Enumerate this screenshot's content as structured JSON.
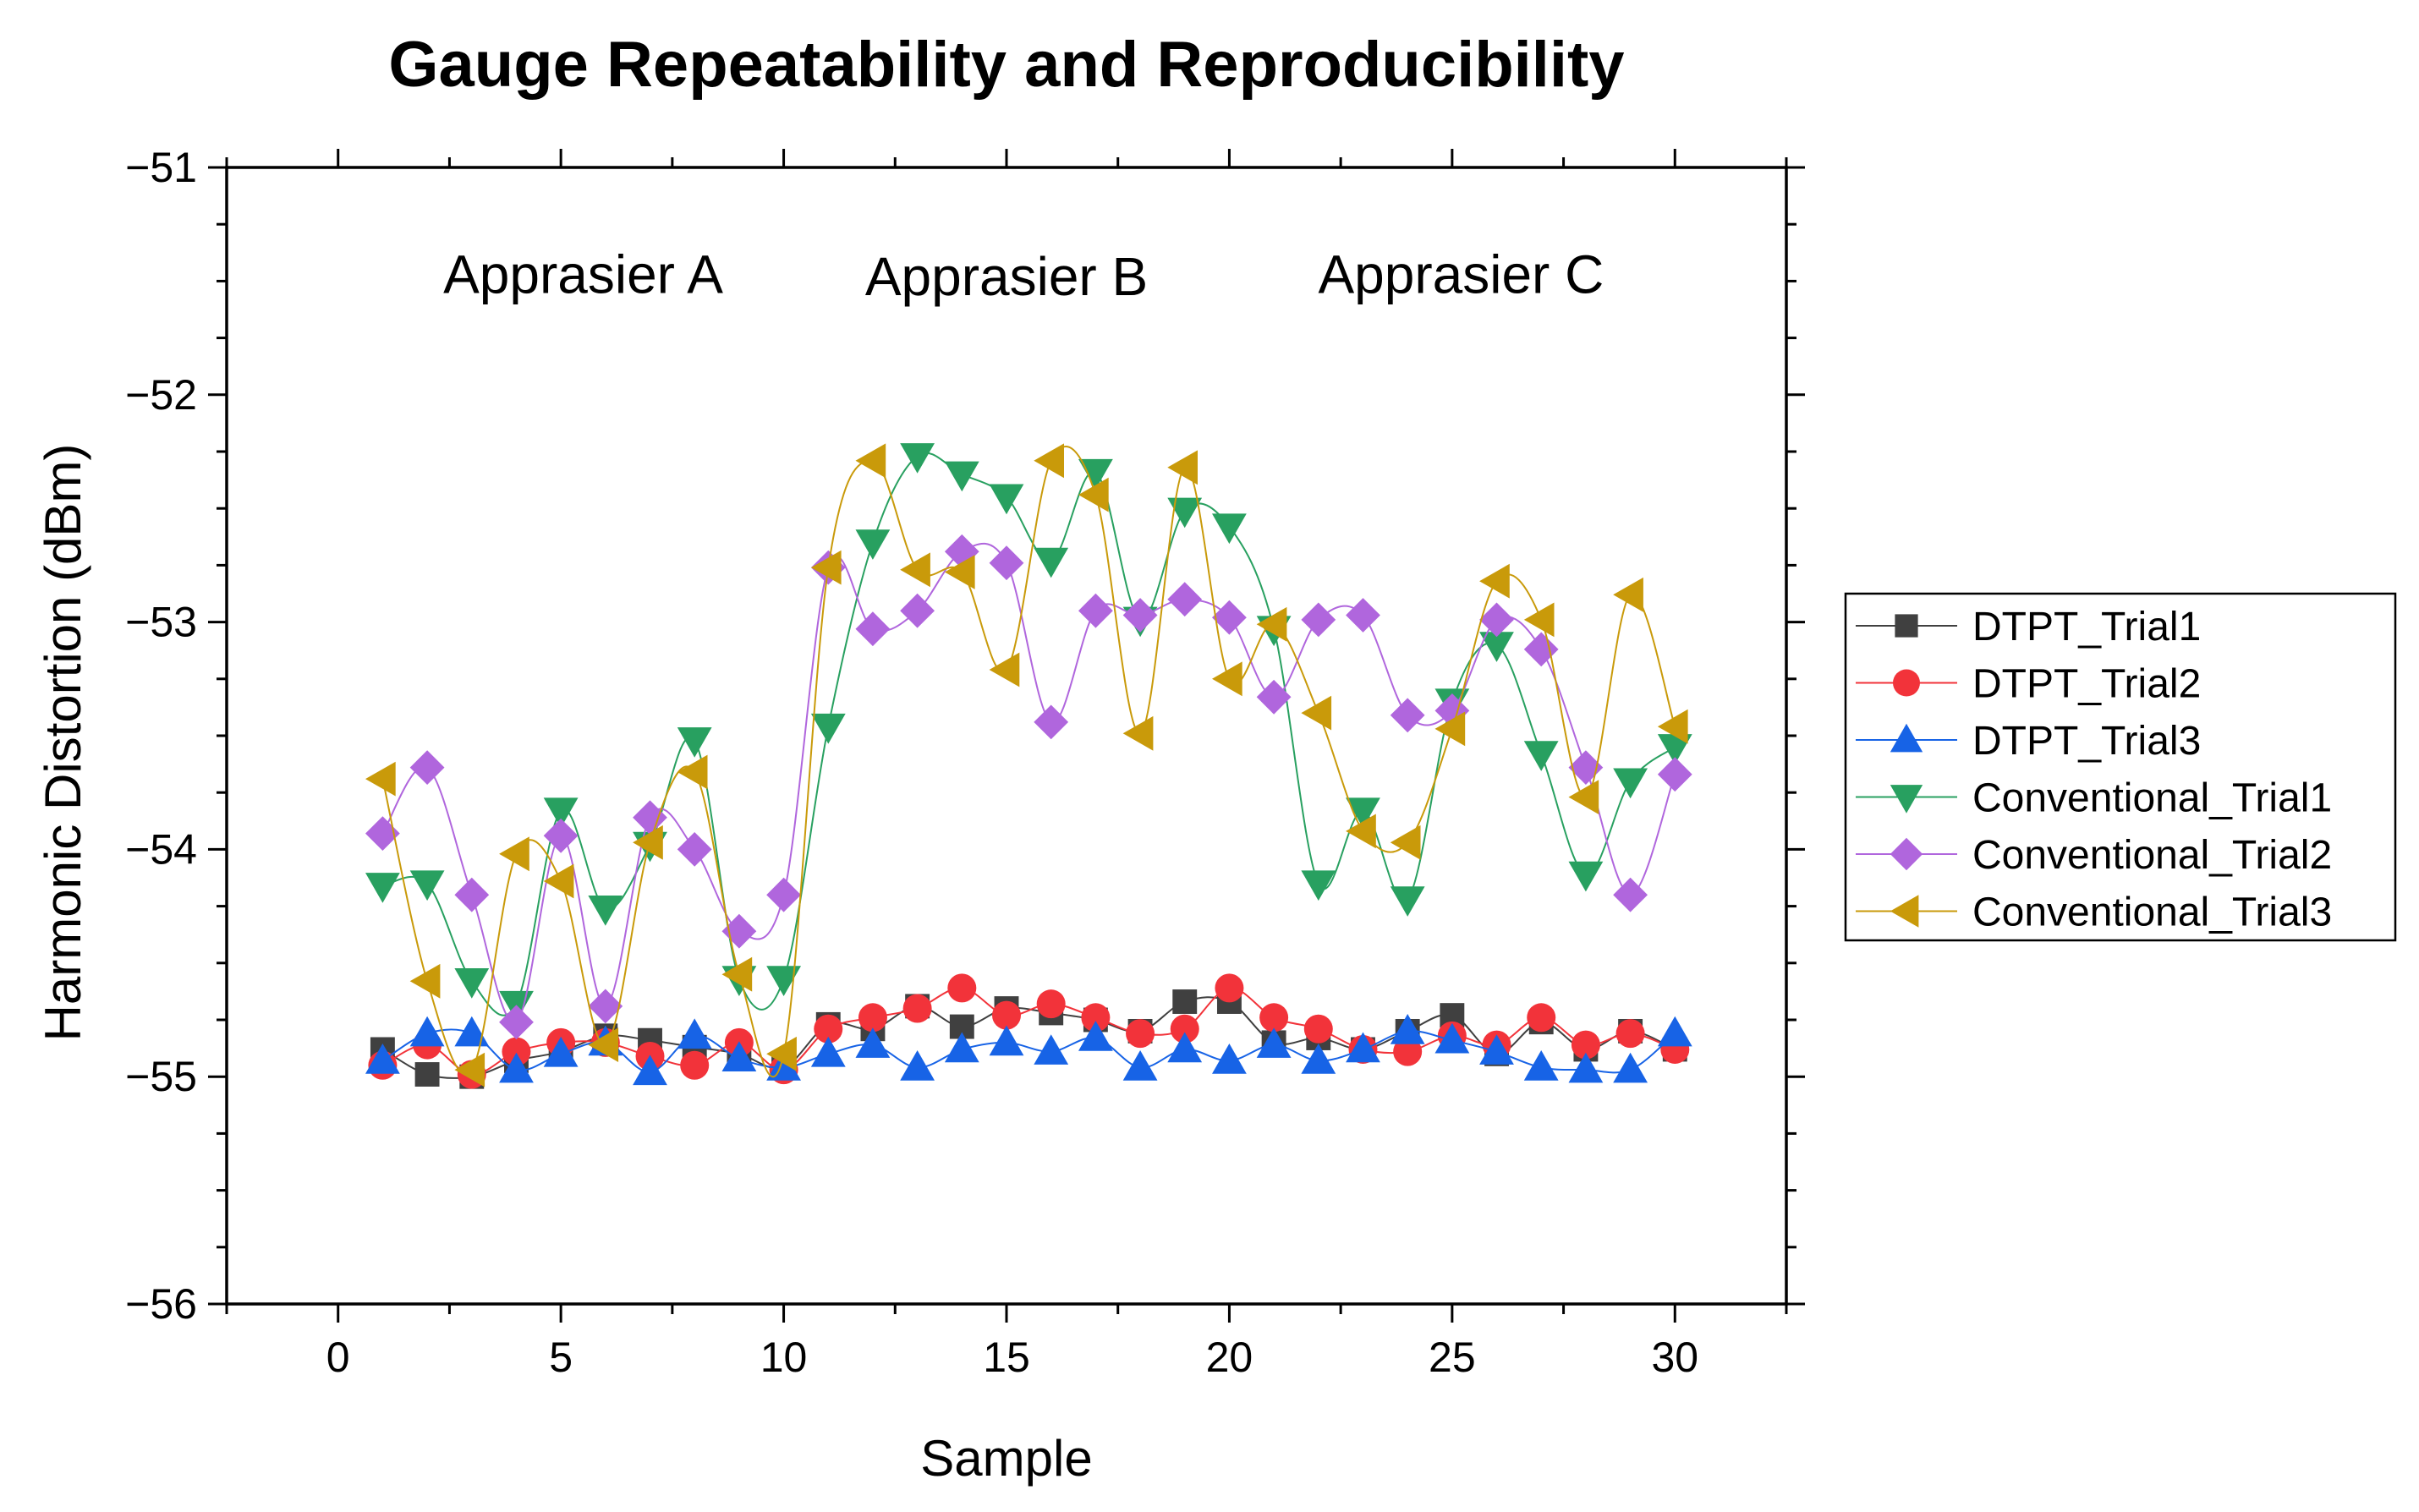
{
  "chart_data": {
    "type": "scatter",
    "title": "Gauge Repeatability and Reproducibility",
    "xlabel": "Sample",
    "ylabel": "Harmonic Distortion (dBm)",
    "xlim": [
      -2.5,
      32.5
    ],
    "ylim": [
      -56,
      -51
    ],
    "xticks": [
      0,
      5,
      10,
      15,
      20,
      25,
      30
    ],
    "xtick_labels": [
      "0",
      "5",
      "10",
      "15",
      "20",
      "25",
      "30"
    ],
    "yticks": [
      -56,
      -55,
      -54,
      -53,
      -52,
      -51
    ],
    "ytick_labels": [
      "−56",
      "−55",
      "−54",
      "−53",
      "−52",
      "−51"
    ],
    "grid": false,
    "legend_position": "right",
    "annotations": [
      {
        "text": "Apprasier A",
        "x": 5.5,
        "y": -51.47
      },
      {
        "text": "Apprasier B",
        "x": 15.0,
        "y": -51.48
      },
      {
        "text": "Apprasier C",
        "x": 25.2,
        "y": -51.47
      }
    ],
    "x": [
      1,
      2,
      3,
      4,
      5,
      6,
      7,
      8,
      9,
      10,
      11,
      12,
      13,
      14,
      15,
      16,
      17,
      18,
      19,
      20,
      21,
      22,
      23,
      24,
      25,
      26,
      27,
      28,
      29,
      30
    ],
    "series": [
      {
        "name": "DTPT_Trial1",
        "color": "#404040",
        "marker": "square",
        "values": [
          -54.88,
          -54.99,
          -55.0,
          -54.93,
          -54.89,
          -54.82,
          -54.84,
          -54.87,
          -54.9,
          -54.96,
          -54.77,
          -54.79,
          -54.69,
          -54.78,
          -54.7,
          -54.72,
          -54.75,
          -54.8,
          -54.67,
          -54.67,
          -54.85,
          -54.83,
          -54.88,
          -54.8,
          -54.73,
          -54.9,
          -54.76,
          -54.88,
          -54.8,
          -54.88
        ]
      },
      {
        "name": "DTPT_Trial2",
        "color": "#f2333a",
        "marker": "circle",
        "values": [
          -54.95,
          -54.86,
          -54.99,
          -54.89,
          -54.85,
          -54.85,
          -54.91,
          -54.95,
          -54.85,
          -54.97,
          -54.79,
          -54.74,
          -54.7,
          -54.61,
          -54.73,
          -54.68,
          -54.74,
          -54.81,
          -54.79,
          -54.61,
          -54.74,
          -54.79,
          -54.88,
          -54.89,
          -54.82,
          -54.86,
          -54.74,
          -54.86,
          -54.81,
          -54.88
        ]
      },
      {
        "name": "DTPT_Trial3",
        "color": "#1763e6",
        "marker": "triangle-up",
        "values": [
          -54.93,
          -54.81,
          -54.81,
          -54.97,
          -54.9,
          -54.85,
          -54.98,
          -54.82,
          -54.92,
          -54.96,
          -54.9,
          -54.86,
          -54.96,
          -54.88,
          -54.85,
          -54.89,
          -54.83,
          -54.96,
          -54.88,
          -54.93,
          -54.86,
          -54.93,
          -54.88,
          -54.8,
          -54.84,
          -54.89,
          -54.96,
          -54.97,
          -54.97,
          -54.81
        ]
      },
      {
        "name": "Conventional_Trial1",
        "color": "#28a060",
        "marker": "triangle-down",
        "values": [
          -54.16,
          -54.15,
          -54.58,
          -54.68,
          -53.83,
          -54.26,
          -53.98,
          -53.52,
          -54.57,
          -54.57,
          -53.46,
          -52.65,
          -52.27,
          -52.35,
          -52.45,
          -52.73,
          -52.34,
          -52.99,
          -52.51,
          -52.58,
          -53.03,
          -54.15,
          -53.83,
          -54.22,
          -53.35,
          -53.1,
          -53.58,
          -54.11,
          -53.7,
          -53.55
        ]
      },
      {
        "name": "Conventional_Trial2",
        "color": "#b066dd",
        "marker": "diamond",
        "values": [
          -53.93,
          -53.64,
          -54.2,
          -54.76,
          -53.94,
          -54.69,
          -53.86,
          -54.0,
          -54.36,
          -54.2,
          -52.76,
          -53.03,
          -52.95,
          -52.69,
          -52.74,
          -53.44,
          -52.95,
          -52.97,
          -52.9,
          -52.98,
          -53.33,
          -52.99,
          -52.97,
          -53.41,
          -53.39,
          -52.99,
          -53.12,
          -53.64,
          -54.2,
          -53.67
        ]
      },
      {
        "name": "Conventional_Trial3",
        "color": "#c99a0a",
        "marker": "triangle-left",
        "values": [
          -53.69,
          -54.58,
          -54.97,
          -54.02,
          -54.14,
          -54.86,
          -53.97,
          -53.66,
          -54.55,
          -54.9,
          -52.76,
          -52.29,
          -52.77,
          -52.78,
          -53.21,
          -52.29,
          -52.44,
          -53.49,
          -52.32,
          -53.25,
          -53.01,
          -53.4,
          -53.92,
          -53.97,
          -53.47,
          -52.82,
          -52.99,
          -53.77,
          -52.88,
          -53.46
        ]
      }
    ]
  }
}
